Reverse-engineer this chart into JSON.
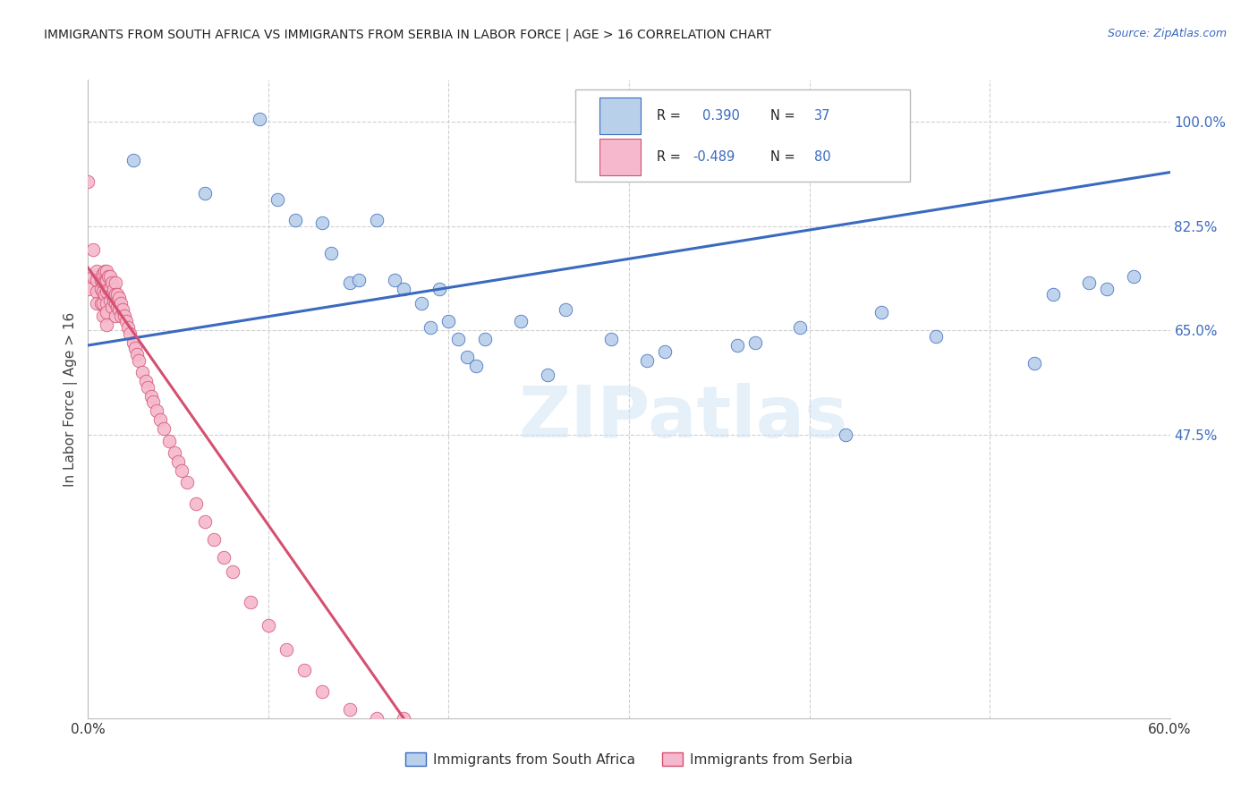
{
  "title": "IMMIGRANTS FROM SOUTH AFRICA VS IMMIGRANTS FROM SERBIA IN LABOR FORCE | AGE > 16 CORRELATION CHART",
  "source": "Source: ZipAtlas.com",
  "ylabel": "In Labor Force | Age > 16",
  "xlim": [
    0.0,
    0.6
  ],
  "ylim": [
    0.0,
    1.07
  ],
  "background_color": "#ffffff",
  "grid_color": "#d0d0d0",
  "watermark": "ZIPatlas",
  "color_south_africa": "#b8d0ea",
  "color_serbia": "#f5b8cc",
  "line_color_south_africa": "#3a6abf",
  "line_color_serbia": "#d45070",
  "sa_line_x0": 0.0,
  "sa_line_y0": 0.625,
  "sa_line_x1": 0.6,
  "sa_line_y1": 0.915,
  "sr_line_x0": 0.0,
  "sr_line_y0": 0.755,
  "sr_line_x1": 0.175,
  "sr_line_y1": 0.0,
  "south_africa_x": [
    0.025,
    0.065,
    0.095,
    0.105,
    0.115,
    0.13,
    0.135,
    0.145,
    0.15,
    0.16,
    0.17,
    0.175,
    0.185,
    0.19,
    0.195,
    0.2,
    0.205,
    0.21,
    0.215,
    0.22,
    0.24,
    0.255,
    0.265,
    0.29,
    0.31,
    0.32,
    0.36,
    0.37,
    0.395,
    0.42,
    0.44,
    0.47,
    0.525,
    0.535,
    0.555,
    0.565,
    0.58
  ],
  "south_africa_y": [
    0.935,
    0.88,
    1.005,
    0.87,
    0.835,
    0.83,
    0.78,
    0.73,
    0.735,
    0.835,
    0.735,
    0.72,
    0.695,
    0.655,
    0.72,
    0.665,
    0.635,
    0.605,
    0.59,
    0.635,
    0.665,
    0.575,
    0.685,
    0.635,
    0.6,
    0.615,
    0.625,
    0.63,
    0.655,
    0.475,
    0.68,
    0.64,
    0.595,
    0.71,
    0.73,
    0.72,
    0.74
  ],
  "serbia_x": [
    0.0,
    0.0,
    0.003,
    0.003,
    0.005,
    0.005,
    0.005,
    0.005,
    0.007,
    0.007,
    0.007,
    0.008,
    0.008,
    0.008,
    0.008,
    0.008,
    0.009,
    0.009,
    0.009,
    0.01,
    0.01,
    0.01,
    0.01,
    0.01,
    0.01,
    0.011,
    0.011,
    0.012,
    0.012,
    0.012,
    0.013,
    0.013,
    0.013,
    0.014,
    0.014,
    0.015,
    0.015,
    0.015,
    0.015,
    0.016,
    0.016,
    0.017,
    0.017,
    0.018,
    0.018,
    0.019,
    0.02,
    0.021,
    0.022,
    0.023,
    0.025,
    0.026,
    0.027,
    0.028,
    0.03,
    0.032,
    0.033,
    0.035,
    0.036,
    0.038,
    0.04,
    0.042,
    0.045,
    0.048,
    0.05,
    0.052,
    0.055,
    0.06,
    0.065,
    0.07,
    0.075,
    0.08,
    0.09,
    0.1,
    0.11,
    0.12,
    0.13,
    0.145,
    0.16,
    0.175
  ],
  "serbia_y": [
    0.9,
    0.72,
    0.785,
    0.74,
    0.75,
    0.735,
    0.715,
    0.695,
    0.735,
    0.72,
    0.695,
    0.745,
    0.73,
    0.715,
    0.695,
    0.675,
    0.75,
    0.73,
    0.71,
    0.75,
    0.735,
    0.715,
    0.695,
    0.68,
    0.66,
    0.74,
    0.72,
    0.74,
    0.72,
    0.7,
    0.73,
    0.71,
    0.69,
    0.72,
    0.7,
    0.73,
    0.71,
    0.695,
    0.675,
    0.71,
    0.69,
    0.705,
    0.685,
    0.695,
    0.675,
    0.685,
    0.675,
    0.665,
    0.655,
    0.645,
    0.63,
    0.62,
    0.61,
    0.6,
    0.58,
    0.565,
    0.555,
    0.54,
    0.53,
    0.515,
    0.5,
    0.485,
    0.465,
    0.445,
    0.43,
    0.415,
    0.395,
    0.36,
    0.33,
    0.3,
    0.27,
    0.245,
    0.195,
    0.155,
    0.115,
    0.08,
    0.045,
    0.015,
    0.0,
    0.0
  ]
}
